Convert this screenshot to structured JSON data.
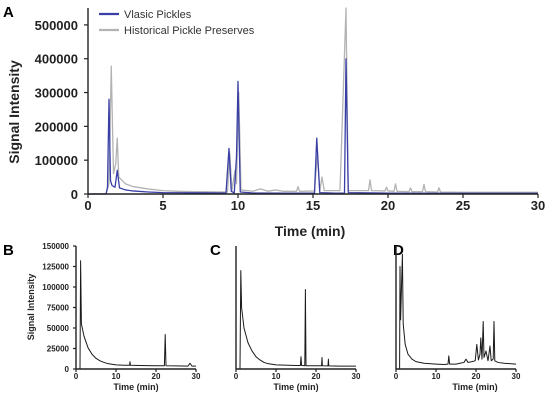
{
  "colors": {
    "vlasic": "#3a3fa6",
    "historical": "#b3b3b3",
    "small": "#1a1a1a",
    "axis": "#222222"
  },
  "chart_data": [
    {
      "panel": "A",
      "type": "line",
      "xlabel": "Time (min)",
      "ylabel": "Signal Intensity",
      "xlim": [
        0,
        30
      ],
      "ylim": [
        0,
        550000
      ],
      "xticks": [
        0,
        5,
        10,
        15,
        20,
        25,
        30
      ],
      "yticks": [
        0,
        100000,
        200000,
        300000,
        400000,
        500000
      ],
      "legend_position": "top-left",
      "series": [
        {
          "name": "Vlasic Pickles",
          "color_key": "vlasic",
          "points": [
            [
              0,
              0
            ],
            [
              1.2,
              0
            ],
            [
              1.3,
              20000
            ],
            [
              1.4,
              280000
            ],
            [
              1.5,
              40000
            ],
            [
              1.6,
              25000
            ],
            [
              1.8,
              20000
            ],
            [
              1.95,
              70000
            ],
            [
              2.1,
              18000
            ],
            [
              2.5,
              12000
            ],
            [
              3,
              9000
            ],
            [
              4,
              6000
            ],
            [
              5,
              4000
            ],
            [
              7,
              3500
            ],
            [
              9.2,
              3000
            ],
            [
              9.4,
              135000
            ],
            [
              9.55,
              8000
            ],
            [
              9.75,
              3000
            ],
            [
              9.9,
              110000
            ],
            [
              10.0,
              333000
            ],
            [
              10.15,
              6000
            ],
            [
              11,
              3000
            ],
            [
              13,
              2500
            ],
            [
              15.1,
              3000
            ],
            [
              15.25,
              165000
            ],
            [
              15.45,
              4000
            ],
            [
              16.5,
              2500
            ],
            [
              17.1,
              3000
            ],
            [
              17.2,
              400000
            ],
            [
              17.35,
              4000
            ],
            [
              20,
              2500
            ],
            [
              25,
              2000
            ],
            [
              30,
              2000
            ]
          ]
        },
        {
          "name": "Historical Pickle Preserves",
          "color_key": "historical",
          "points": [
            [
              0,
              0
            ],
            [
              1.2,
              0
            ],
            [
              1.4,
              30000
            ],
            [
              1.55,
              378000
            ],
            [
              1.7,
              60000
            ],
            [
              1.85,
              90000
            ],
            [
              1.95,
              165000
            ],
            [
              2.05,
              50000
            ],
            [
              2.5,
              30000
            ],
            [
              3,
              22000
            ],
            [
              4,
              15000
            ],
            [
              5,
              10000
            ],
            [
              6,
              8000
            ],
            [
              7,
              7000
            ],
            [
              8,
              6500
            ],
            [
              9.3,
              6000
            ],
            [
              9.45,
              120000
            ],
            [
              9.6,
              10000
            ],
            [
              9.8,
              70000
            ],
            [
              9.9,
              30000
            ],
            [
              10.05,
              300000
            ],
            [
              10.2,
              12000
            ],
            [
              11,
              8000
            ],
            [
              11.5,
              15000
            ],
            [
              12,
              8000
            ],
            [
              12.5,
              12000
            ],
            [
              13,
              8000
            ],
            [
              13.9,
              8000
            ],
            [
              14,
              22000
            ],
            [
              14.1,
              8000
            ],
            [
              15.1,
              9000
            ],
            [
              15.3,
              120000
            ],
            [
              15.45,
              10000
            ],
            [
              15.6,
              50000
            ],
            [
              15.75,
              10000
            ],
            [
              16.8,
              10000
            ],
            [
              17.2,
              550000
            ],
            [
              17.35,
              10000
            ],
            [
              18.7,
              10000
            ],
            [
              18.8,
              42000
            ],
            [
              18.9,
              10000
            ],
            [
              19.8,
              9000
            ],
            [
              19.9,
              20000
            ],
            [
              20.0,
              9000
            ],
            [
              20.4,
              8000
            ],
            [
              20.5,
              30000
            ],
            [
              20.6,
              8000
            ],
            [
              21.4,
              7000
            ],
            [
              21.5,
              18000
            ],
            [
              21.6,
              7000
            ],
            [
              22.3,
              7000
            ],
            [
              22.4,
              28000
            ],
            [
              22.5,
              7000
            ],
            [
              23.3,
              6000
            ],
            [
              23.4,
              18000
            ],
            [
              23.5,
              6000
            ],
            [
              25,
              5000
            ],
            [
              28,
              5000
            ],
            [
              30,
              5000
            ]
          ]
        }
      ]
    },
    {
      "panel": "B",
      "type": "line",
      "xlabel": "Time (min)",
      "ylabel": "Signal Intensity",
      "xlim": [
        0,
        30
      ],
      "ylim": [
        0,
        150000
      ],
      "xticks": [
        0,
        10,
        20,
        30
      ],
      "yticks": [
        0,
        25000,
        50000,
        75000,
        100000,
        125000,
        150000
      ],
      "series": [
        {
          "color_key": "small",
          "points": [
            [
              0,
              0
            ],
            [
              1.0,
              0
            ],
            [
              1.15,
              132000
            ],
            [
              1.35,
              55000
            ],
            [
              2,
              40000
            ],
            [
              3,
              26000
            ],
            [
              4,
              18000
            ],
            [
              5,
              13000
            ],
            [
              6,
              10000
            ],
            [
              7,
              8000
            ],
            [
              8,
              6500
            ],
            [
              10,
              5000
            ],
            [
              12,
              4500
            ],
            [
              13.4,
              4500
            ],
            [
              13.5,
              9000
            ],
            [
              13.6,
              4500
            ],
            [
              16,
              4200
            ],
            [
              20,
              4000
            ],
            [
              22.1,
              4000
            ],
            [
              22.3,
              42000
            ],
            [
              22.5,
              4000
            ],
            [
              25,
              3800
            ],
            [
              28,
              3500
            ],
            [
              28.5,
              7000
            ],
            [
              29,
              3500
            ],
            [
              30,
              3500
            ]
          ]
        }
      ]
    },
    {
      "panel": "C",
      "type": "line",
      "xlabel": "Time (min)",
      "ylabel": "",
      "xlim": [
        0,
        30
      ],
      "ylim": [
        0,
        150000
      ],
      "xticks": [
        0,
        10,
        20,
        30
      ],
      "series": [
        {
          "color_key": "small",
          "points": [
            [
              0,
              0
            ],
            [
              1.0,
              0
            ],
            [
              1.2,
              120000
            ],
            [
              1.4,
              75000
            ],
            [
              2,
              50000
            ],
            [
              3,
              32000
            ],
            [
              4,
              22000
            ],
            [
              5,
              15000
            ],
            [
              6,
              11000
            ],
            [
              7,
              8000
            ],
            [
              8,
              6500
            ],
            [
              10,
              5000
            ],
            [
              13,
              4500
            ],
            [
              15,
              4200
            ],
            [
              16.1,
              4200
            ],
            [
              16.25,
              15000
            ],
            [
              16.4,
              4200
            ],
            [
              17.2,
              4000
            ],
            [
              17.35,
              97000
            ],
            [
              17.5,
              4000
            ],
            [
              21.4,
              4000
            ],
            [
              21.5,
              14000
            ],
            [
              21.6,
              4000
            ],
            [
              23,
              3800
            ],
            [
              23.1,
              12000
            ],
            [
              23.2,
              3800
            ],
            [
              26,
              3500
            ],
            [
              30,
              3500
            ]
          ]
        }
      ]
    },
    {
      "panel": "D",
      "type": "line",
      "xlabel": "Time (min)",
      "ylabel": "",
      "xlim": [
        0,
        30
      ],
      "ylim": [
        0,
        150000
      ],
      "xticks": [
        0,
        10,
        20,
        30
      ],
      "series": [
        {
          "color_key": "small",
          "points": [
            [
              0,
              0
            ],
            [
              0.9,
              0
            ],
            [
              1.0,
              125000
            ],
            [
              1.15,
              60000
            ],
            [
              1.6,
              140000
            ],
            [
              1.8,
              55000
            ],
            [
              2.3,
              30000
            ],
            [
              3,
              18000
            ],
            [
              4,
              12000
            ],
            [
              5,
              9000
            ],
            [
              7,
              7000
            ],
            [
              10,
              6000
            ],
            [
              12,
              5500
            ],
            [
              13,
              6000
            ],
            [
              13.2,
              16000
            ],
            [
              13.4,
              6000
            ],
            [
              15,
              6000
            ],
            [
              16,
              7000
            ],
            [
              17,
              8000
            ],
            [
              17.5,
              12000
            ],
            [
              18,
              8000
            ],
            [
              19,
              9000
            ],
            [
              19.8,
              10000
            ],
            [
              20.2,
              30000
            ],
            [
              20.6,
              11000
            ],
            [
              21,
              18000
            ],
            [
              21.2,
              38000
            ],
            [
              21.5,
              12000
            ],
            [
              21.8,
              58000
            ],
            [
              22.0,
              14000
            ],
            [
              22.5,
              22000
            ],
            [
              23,
              10000
            ],
            [
              23.5,
              28000
            ],
            [
              23.8,
              10000
            ],
            [
              24.3,
              12000
            ],
            [
              24.5,
              58000
            ],
            [
              24.7,
              10000
            ],
            [
              25.5,
              8000
            ],
            [
              27,
              7000
            ],
            [
              30,
              6000
            ]
          ]
        }
      ]
    }
  ]
}
